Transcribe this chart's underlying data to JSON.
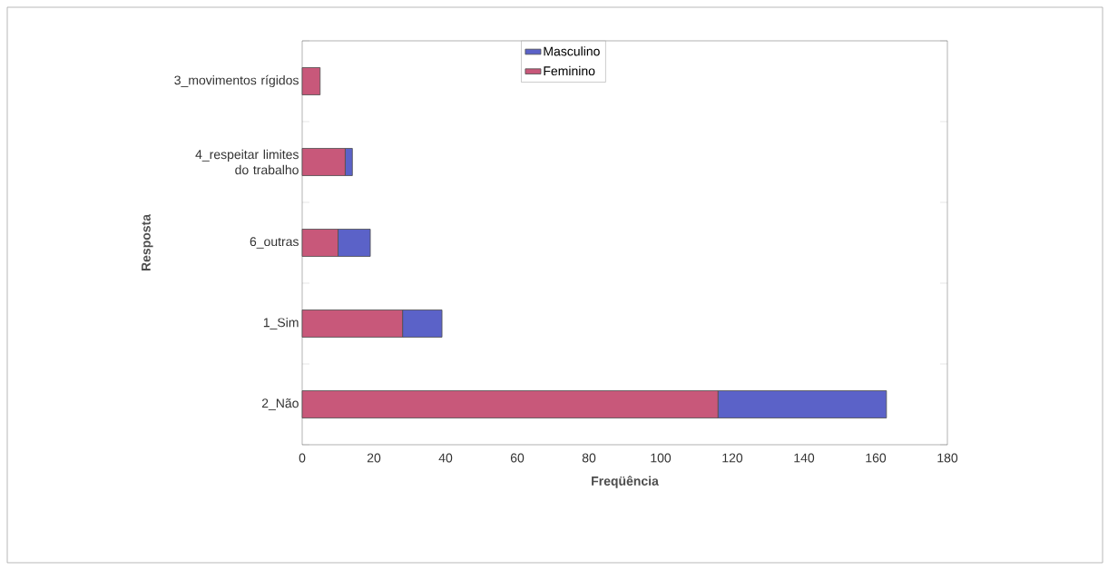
{
  "chart_data": {
    "type": "bar",
    "orientation": "horizontal",
    "stacked": true,
    "categories": [
      "3_movimentos rígidos",
      "4_respeitar limites do trabalho",
      "6_outras",
      "1_Sim",
      "2_Não"
    ],
    "series": [
      {
        "name": "Feminino",
        "color": "#c8587a",
        "values": [
          5,
          12,
          10,
          28,
          116
        ]
      },
      {
        "name": "Masculino",
        "color": "#5b62c8",
        "values": [
          0,
          2,
          9,
          11,
          47
        ]
      }
    ],
    "xlabel": "Freqüência",
    "ylabel": "Resposta",
    "xlim": [
      0,
      180
    ],
    "xticks": [
      0,
      20,
      40,
      60,
      80,
      100,
      120,
      140,
      160,
      180
    ],
    "legend": "top",
    "grid": false
  }
}
